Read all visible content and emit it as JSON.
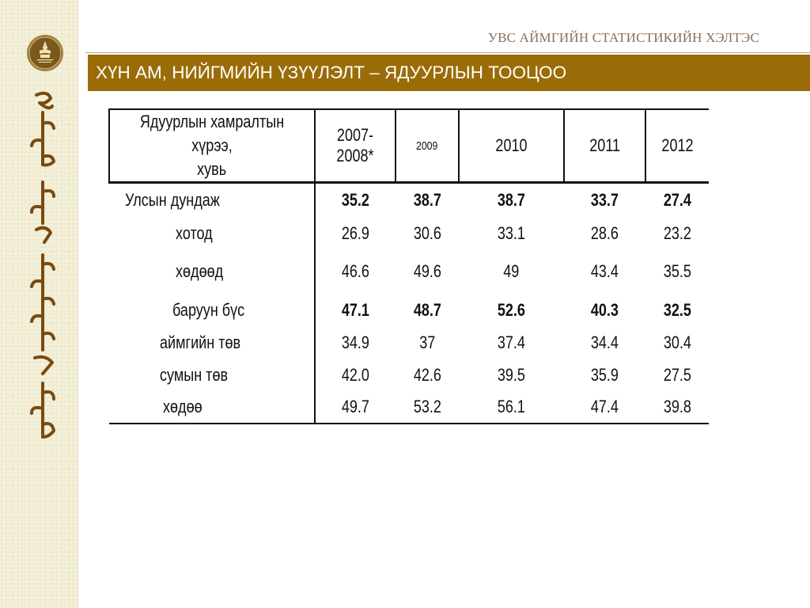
{
  "header": {
    "organization": "УВС АЙМГИЙН СТАТИСТИКИЙН ХЭЛТЭС",
    "title": "ХҮН АМ, НИЙГМИЙН ҮЗҮҮЛЭЛТ –  ЯДУУРЛЫН ТООЦОО",
    "accent_color": "#9a6c08"
  },
  "logo": {
    "icon": "statistics-emblem-icon",
    "color": "#7a5a1c"
  },
  "sidebar": {
    "decoration": "mongolian-script-icon"
  },
  "table": {
    "corner_header": [
      "Ядуурлын хамралтын хүрээ,",
      "хувь"
    ],
    "columns": [
      "2007-2008*",
      "2009",
      "2010",
      "2011",
      "2012"
    ],
    "rows": [
      {
        "label": "Улсын дундаж",
        "bold": true,
        "values": [
          "35.2",
          "38.7",
          "38.7",
          "33.7",
          "27.4"
        ]
      },
      {
        "label": "хотод",
        "bold": false,
        "values": [
          "26.9",
          "30.6",
          "33.1",
          "28.6",
          "23.2"
        ]
      },
      {
        "label": "хөдөөд",
        "bold": false,
        "values": [
          "46.6",
          "49.6",
          "49",
          "43.4",
          "35.5"
        ]
      },
      {
        "label": "баруун бүс",
        "bold": true,
        "values": [
          "47.1",
          "48.7",
          "52.6",
          "40.3",
          "32.5"
        ]
      },
      {
        "label": "аймгийн төв",
        "bold": false,
        "values": [
          "34.9",
          "37",
          "37.4",
          "34.4",
          "30.4"
        ]
      },
      {
        "label": "сумын төв",
        "bold": false,
        "values": [
          "42.0",
          "42.6",
          "39.5",
          "35.9",
          "27.5"
        ]
      },
      {
        "label": "хөдөө",
        "bold": false,
        "values": [
          "49.7",
          "53.2",
          "56.1",
          "47.4",
          "39.8"
        ]
      }
    ]
  }
}
